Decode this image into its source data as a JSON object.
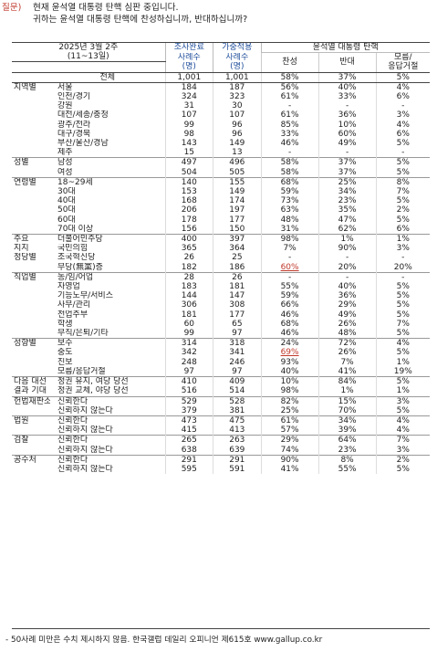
{
  "question": {
    "tag": "질문)",
    "line1": "현재 윤석열 대통령 탄핵 심판 중입니다.",
    "line2": "귀하는 윤석열 대통령 탄핵에 찬성하십니까, 반대하십니까?"
  },
  "header": {
    "period_line1": "2025년 3월 2주",
    "period_line2": "(11~13일)",
    "col_sample1": [
      "조사완료",
      "사례수",
      "(명)"
    ],
    "col_sample2": [
      "가중적용",
      "사례수",
      "(명)"
    ],
    "group_label": "윤석열 대통령 탄핵",
    "col_agree": "찬성",
    "col_oppose": "반대",
    "col_dk": [
      "모름/",
      "응답거절"
    ]
  },
  "rows": [
    {
      "g": "",
      "c": "전체",
      "n1": "1,001",
      "n2": "1,001",
      "a": "58%",
      "b": "37%",
      "d": "5%",
      "total": true
    },
    {
      "g": "지역별",
      "c": "서울",
      "n1": "184",
      "n2": "187",
      "a": "56%",
      "b": "40%",
      "d": "4%",
      "start": true
    },
    {
      "g": "",
      "c": "인천/경기",
      "n1": "324",
      "n2": "323",
      "a": "61%",
      "b": "33%",
      "d": "6%"
    },
    {
      "g": "",
      "c": "강원",
      "n1": "31",
      "n2": "30",
      "a": "-",
      "b": "-",
      "d": "-"
    },
    {
      "g": "",
      "c": "대전/세종/충청",
      "n1": "107",
      "n2": "107",
      "a": "61%",
      "b": "36%",
      "d": "3%"
    },
    {
      "g": "",
      "c": "광주/전라",
      "n1": "99",
      "n2": "96",
      "a": "85%",
      "b": "10%",
      "d": "4%"
    },
    {
      "g": "",
      "c": "대구/경북",
      "n1": "98",
      "n2": "96",
      "a": "33%",
      "b": "60%",
      "d": "6%"
    },
    {
      "g": "",
      "c": "부산/울산/경남",
      "n1": "143",
      "n2": "149",
      "a": "46%",
      "b": "49%",
      "d": "5%"
    },
    {
      "g": "",
      "c": "제주",
      "n1": "15",
      "n2": "13",
      "a": "-",
      "b": "-",
      "d": "-"
    },
    {
      "g": "성별",
      "c": "남성",
      "n1": "497",
      "n2": "496",
      "a": "58%",
      "b": "37%",
      "d": "5%",
      "start": true
    },
    {
      "g": "",
      "c": "여성",
      "n1": "504",
      "n2": "505",
      "a": "58%",
      "b": "37%",
      "d": "5%"
    },
    {
      "g": "연령별",
      "c": "18~29세",
      "n1": "140",
      "n2": "155",
      "a": "68%",
      "b": "25%",
      "d": "8%",
      "start": true
    },
    {
      "g": "",
      "c": "30대",
      "n1": "153",
      "n2": "149",
      "a": "59%",
      "b": "34%",
      "d": "7%"
    },
    {
      "g": "",
      "c": "40대",
      "n1": "168",
      "n2": "174",
      "a": "73%",
      "b": "23%",
      "d": "5%"
    },
    {
      "g": "",
      "c": "50대",
      "n1": "206",
      "n2": "197",
      "a": "63%",
      "b": "35%",
      "d": "2%"
    },
    {
      "g": "",
      "c": "60대",
      "n1": "178",
      "n2": "177",
      "a": "48%",
      "b": "47%",
      "d": "5%"
    },
    {
      "g": "",
      "c": "70대 이상",
      "n1": "156",
      "n2": "150",
      "a": "31%",
      "b": "62%",
      "d": "6%"
    },
    {
      "g": "주요",
      "c": "더불어민주당",
      "n1": "400",
      "n2": "397",
      "a": "98%",
      "b": "1%",
      "d": "1%",
      "start": true
    },
    {
      "g": "지지",
      "c": "국민의힘",
      "n1": "365",
      "n2": "364",
      "a": "7%",
      "b": "90%",
      "d": "3%"
    },
    {
      "g": "정당별",
      "c": "조국혁신당",
      "n1": "26",
      "n2": "25",
      "a": "-",
      "b": "-",
      "d": "-"
    },
    {
      "g": "",
      "c": "무당(無黨)층",
      "n1": "182",
      "n2": "186",
      "a": "60%",
      "b": "20%",
      "d": "20%",
      "red": true
    },
    {
      "g": "직업별",
      "c": "농/임/어업",
      "n1": "28",
      "n2": "26",
      "a": "-",
      "b": "-",
      "d": "-",
      "start": true
    },
    {
      "g": "",
      "c": "자영업",
      "n1": "183",
      "n2": "181",
      "a": "55%",
      "b": "40%",
      "d": "5%"
    },
    {
      "g": "",
      "c": "기능노무/서비스",
      "n1": "144",
      "n2": "147",
      "a": "59%",
      "b": "36%",
      "d": "5%"
    },
    {
      "g": "",
      "c": "사무/관리",
      "n1": "306",
      "n2": "308",
      "a": "66%",
      "b": "29%",
      "d": "5%"
    },
    {
      "g": "",
      "c": "전업주부",
      "n1": "181",
      "n2": "177",
      "a": "46%",
      "b": "49%",
      "d": "5%"
    },
    {
      "g": "",
      "c": "학생",
      "n1": "60",
      "n2": "65",
      "a": "68%",
      "b": "26%",
      "d": "7%"
    },
    {
      "g": "",
      "c": "무직/은퇴/기타",
      "n1": "99",
      "n2": "97",
      "a": "46%",
      "b": "48%",
      "d": "5%"
    },
    {
      "g": "성향별",
      "c": "보수",
      "n1": "314",
      "n2": "318",
      "a": "24%",
      "b": "72%",
      "d": "4%",
      "start": true
    },
    {
      "g": "",
      "c": "중도",
      "n1": "342",
      "n2": "341",
      "a": "69%",
      "b": "26%",
      "d": "5%",
      "red": true
    },
    {
      "g": "",
      "c": "진보",
      "n1": "248",
      "n2": "246",
      "a": "93%",
      "b": "7%",
      "d": "1%"
    },
    {
      "g": "",
      "c": "모름/응답거절",
      "n1": "97",
      "n2": "97",
      "a": "40%",
      "b": "41%",
      "d": "19%"
    },
    {
      "g": "다음 대선",
      "c": "정권 유지, 여당 당선",
      "n1": "410",
      "n2": "409",
      "a": "10%",
      "b": "84%",
      "d": "5%",
      "start": true
    },
    {
      "g": "결과 기대",
      "c": "정권 교체, 야당 당선",
      "n1": "516",
      "n2": "514",
      "a": "98%",
      "b": "1%",
      "d": "1%"
    },
    {
      "g": "헌법재판소",
      "c": "신뢰한다",
      "n1": "529",
      "n2": "528",
      "a": "82%",
      "b": "15%",
      "d": "3%",
      "start": true
    },
    {
      "g": "",
      "c": "신뢰하지 않는다",
      "n1": "379",
      "n2": "381",
      "a": "25%",
      "b": "70%",
      "d": "5%"
    },
    {
      "g": "법원",
      "c": "신뢰한다",
      "n1": "473",
      "n2": "475",
      "a": "61%",
      "b": "34%",
      "d": "4%",
      "start": true
    },
    {
      "g": "",
      "c": "신뢰하지 않는다",
      "n1": "415",
      "n2": "413",
      "a": "57%",
      "b": "39%",
      "d": "4%"
    },
    {
      "g": "검찰",
      "c": "신뢰한다",
      "n1": "265",
      "n2": "263",
      "a": "29%",
      "b": "64%",
      "d": "7%",
      "start": true
    },
    {
      "g": "",
      "c": "신뢰하지 않는다",
      "n1": "638",
      "n2": "639",
      "a": "74%",
      "b": "23%",
      "d": "3%"
    },
    {
      "g": "공수처",
      "c": "신뢰한다",
      "n1": "291",
      "n2": "291",
      "a": "90%",
      "b": "8%",
      "d": "2%",
      "start": true
    },
    {
      "g": "",
      "c": "신뢰하지 않는다",
      "n1": "595",
      "n2": "591",
      "a": "41%",
      "b": "55%",
      "d": "5%"
    }
  ],
  "footnote": "- 50사례 미만은 수치 제시하지 않음. 한국갤럽 데일리 오피니언 제615호 www.gallup.co.kr"
}
